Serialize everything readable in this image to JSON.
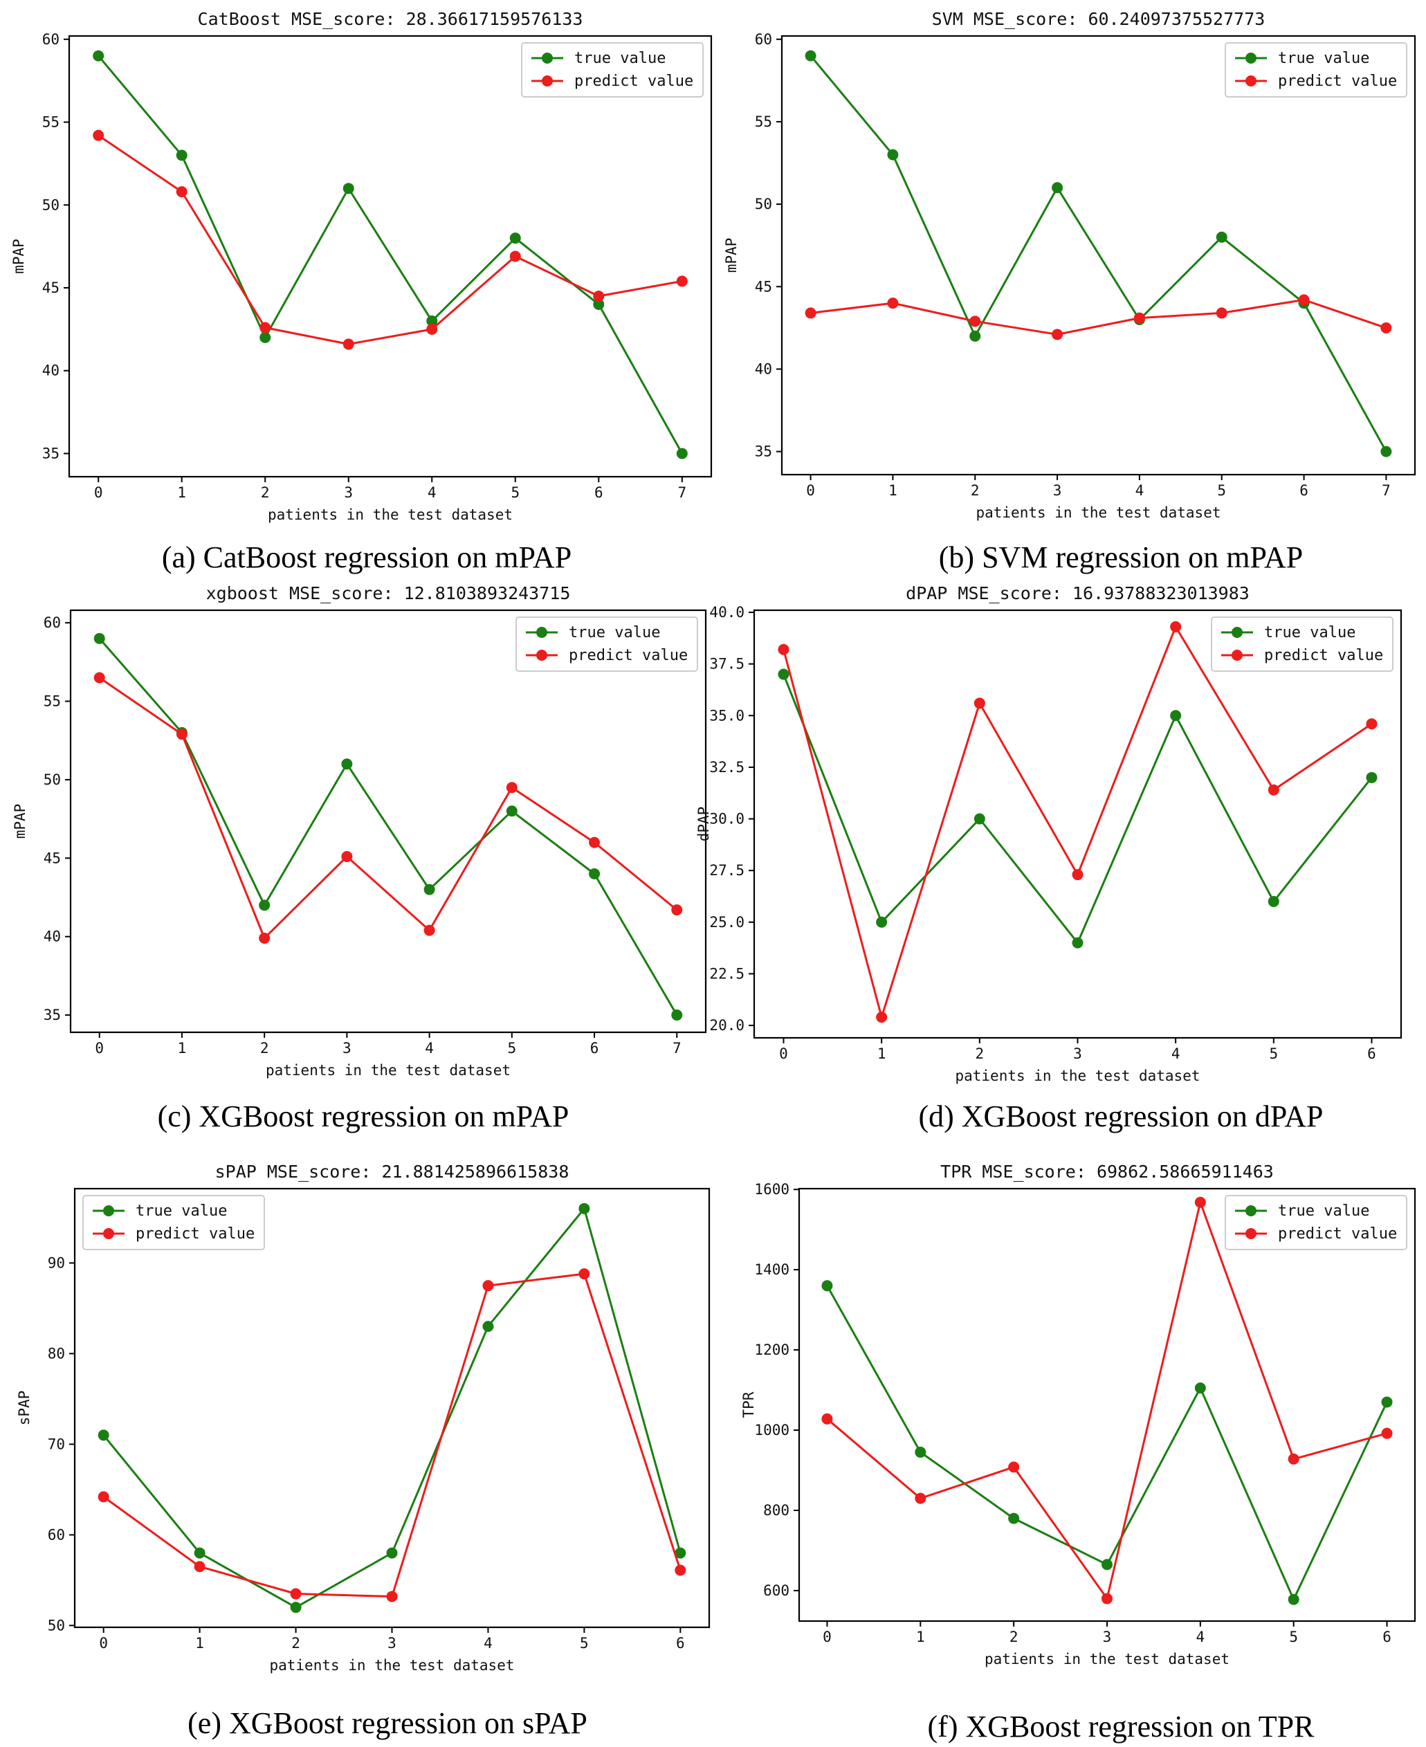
{
  "colors": {
    "true_value": "#1a7f12",
    "predict_value": "#ee1c1c"
  },
  "chart_data": [
    {
      "type": "line",
      "title": "CatBoost MSE_score: 28.36617159576133",
      "xlabel": "patients in the test dataset",
      "ylabel": "mPAP",
      "caption": "(a) CatBoost regression on mPAP",
      "legend_position": "top-right",
      "xlim": [
        -0.35,
        7.35
      ],
      "ylim": [
        33.6,
        60.2
      ],
      "x_ticks": [
        0,
        1,
        2,
        3,
        4,
        5,
        6,
        7
      ],
      "y_ticks": [
        35,
        40,
        45,
        50,
        55,
        60
      ],
      "x": [
        0,
        1,
        2,
        3,
        4,
        5,
        6,
        7
      ],
      "series": [
        {
          "name": "true value",
          "values": [
            59,
            53,
            42,
            51,
            43,
            48,
            44,
            35
          ]
        },
        {
          "name": "predict value",
          "values": [
            54.2,
            50.8,
            42.6,
            41.6,
            42.5,
            46.9,
            44.5,
            45.4
          ]
        }
      ]
    },
    {
      "type": "line",
      "title": "SVM MSE_score: 60.24097375527773",
      "xlabel": "patients in the test dataset",
      "ylabel": "mPAP",
      "caption": "(b) SVM regression on mPAP",
      "legend_position": "top-right",
      "xlim": [
        -0.35,
        7.35
      ],
      "ylim": [
        33.6,
        60.2
      ],
      "x_ticks": [
        0,
        1,
        2,
        3,
        4,
        5,
        6,
        7
      ],
      "y_ticks": [
        35,
        40,
        45,
        50,
        55,
        60
      ],
      "x": [
        0,
        1,
        2,
        3,
        4,
        5,
        6,
        7
      ],
      "series": [
        {
          "name": "true value",
          "values": [
            59,
            53,
            42,
            51,
            43,
            48,
            44,
            35
          ]
        },
        {
          "name": "predict value",
          "values": [
            43.4,
            44.0,
            42.9,
            42.1,
            43.1,
            43.4,
            44.2,
            42.5
          ]
        }
      ]
    },
    {
      "type": "line",
      "title": "xgboost MSE_score: 12.8103893243715",
      "xlabel": "patients in the test dataset",
      "ylabel": "mPAP",
      "caption": "(c) XGBoost regression on mPAP",
      "legend_position": "top-right",
      "xlim": [
        -0.35,
        7.35
      ],
      "ylim": [
        33.9,
        60.8
      ],
      "x_ticks": [
        0,
        1,
        2,
        3,
        4,
        5,
        6,
        7
      ],
      "y_ticks": [
        35,
        40,
        45,
        50,
        55,
        60
      ],
      "x": [
        0,
        1,
        2,
        3,
        4,
        5,
        6,
        7
      ],
      "series": [
        {
          "name": "true value",
          "values": [
            59,
            53,
            42,
            51,
            43,
            48,
            44,
            35
          ]
        },
        {
          "name": "predict value",
          "values": [
            56.5,
            52.9,
            39.9,
            45.1,
            40.4,
            49.5,
            46.0,
            41.7
          ]
        }
      ]
    },
    {
      "type": "line",
      "title": "dPAP MSE_score: 16.93788323013983",
      "xlabel": "patients in the test dataset",
      "ylabel": "dPAP",
      "caption": "(d) XGBoost regression on dPAP",
      "legend_position": "top-right",
      "xlim": [
        -0.3,
        6.3
      ],
      "ylim": [
        19.4,
        40.1
      ],
      "x_ticks": [
        0,
        1,
        2,
        3,
        4,
        5,
        6
      ],
      "y_ticks": [
        20.0,
        22.5,
        25.0,
        27.5,
        30.0,
        32.5,
        35.0,
        37.5,
        40.0
      ],
      "y_tick_labels": [
        "20.0",
        "22.5",
        "25.0",
        "27.5",
        "30.0",
        "32.5",
        "35.0",
        "37.5",
        "40.0"
      ],
      "x": [
        0,
        1,
        2,
        3,
        4,
        5,
        6
      ],
      "series": [
        {
          "name": "true value",
          "values": [
            37,
            25,
            30,
            24,
            35,
            26,
            32
          ]
        },
        {
          "name": "predict value",
          "values": [
            38.2,
            20.4,
            35.6,
            27.3,
            39.3,
            31.4,
            34.6
          ]
        }
      ]
    },
    {
      "type": "line",
      "title": "sPAP MSE_score: 21.881425896615838",
      "xlabel": "patients in the test dataset",
      "ylabel": "sPAP",
      "caption": "(e) XGBoost regression on sPAP",
      "legend_position": "top-left",
      "xlim": [
        -0.3,
        6.3
      ],
      "ylim": [
        49.8,
        98.2
      ],
      "x_ticks": [
        0,
        1,
        2,
        3,
        4,
        5,
        6
      ],
      "y_ticks": [
        50,
        60,
        70,
        80,
        90
      ],
      "x": [
        0,
        1,
        2,
        3,
        4,
        5,
        6
      ],
      "series": [
        {
          "name": "true value",
          "values": [
            71,
            58,
            52,
            58,
            83,
            96,
            58
          ]
        },
        {
          "name": "predict value",
          "values": [
            64.2,
            56.5,
            53.5,
            53.2,
            87.5,
            88.8,
            56.1
          ]
        }
      ]
    },
    {
      "type": "line",
      "title": "TPR MSE_score: 69862.58665911463",
      "xlabel": "patients in the test dataset",
      "ylabel": "TPR",
      "caption": "(f) XGBoost regression on TPR",
      "legend_position": "top-right",
      "xlim": [
        -0.3,
        6.3
      ],
      "ylim": [
        524,
        1602
      ],
      "x_ticks": [
        0,
        1,
        2,
        3,
        4,
        5,
        6
      ],
      "y_ticks": [
        600,
        800,
        1000,
        1200,
        1400,
        1600
      ],
      "x": [
        0,
        1,
        2,
        3,
        4,
        5,
        6
      ],
      "series": [
        {
          "name": "true value",
          "values": [
            1360,
            945,
            780,
            665,
            1105,
            578,
            1070
          ]
        },
        {
          "name": "predict value",
          "values": [
            1028,
            830,
            908,
            580,
            1568,
            928,
            992
          ]
        }
      ]
    }
  ]
}
